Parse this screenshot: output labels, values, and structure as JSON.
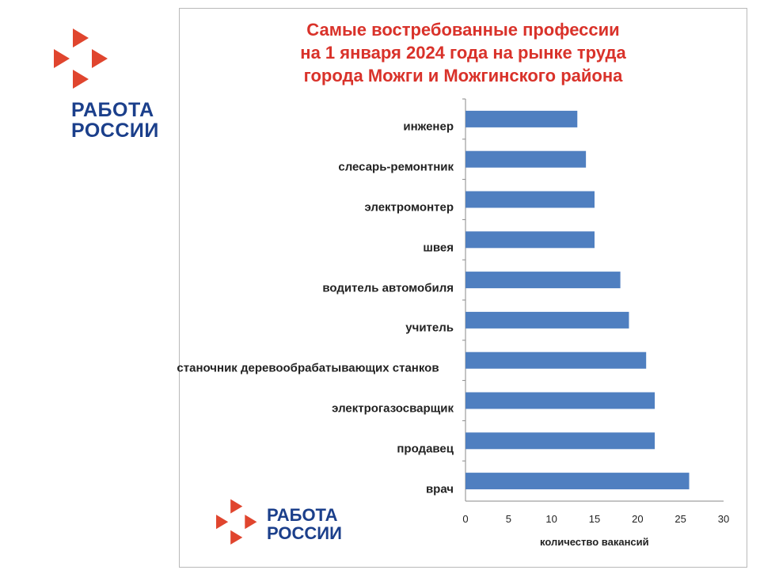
{
  "logo": {
    "line1": "РАБОТА",
    "line2": "РОССИИ"
  },
  "colors": {
    "accent": "#d9322a",
    "brand": "#1b3f8b",
    "bar": "#4f7fc0",
    "logo_arrow": "#e0452e"
  },
  "chart_data": {
    "type": "bar",
    "orientation": "horizontal",
    "title_lines": [
      "Самые востребованные профессии",
      "на 1 января 2024 года на рынке труда",
      "города Можги и Можгинского района"
    ],
    "categories": [
      "инженер",
      "слесарь-ремонтник",
      "электромонтер",
      "швея",
      "водитель автомобиля",
      "учитель",
      "станочник деревообрабатывающих станков",
      "электрогазосварщик",
      "продавец",
      "врач"
    ],
    "values": [
      13,
      14,
      15,
      15,
      18,
      19,
      21,
      22,
      22,
      26
    ],
    "xlabel": "количество вакансий",
    "xlim": [
      0,
      30
    ],
    "xticks": [
      0,
      5,
      10,
      15,
      20,
      25,
      30
    ],
    "grid": false,
    "legend": "none"
  }
}
